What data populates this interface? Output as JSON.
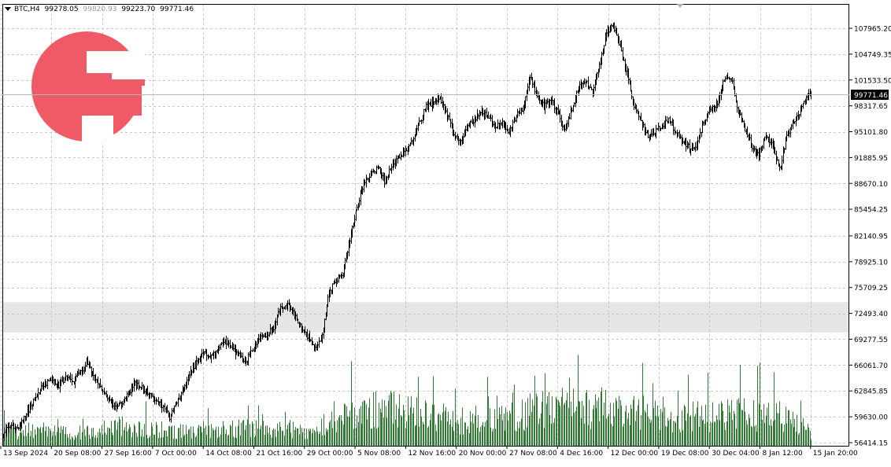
{
  "header": {
    "symbol_timeframe": "BTC,H4",
    "open": "99278.05",
    "high": "99820.93",
    "low": "99223.70",
    "close": "99771.46"
  },
  "logo": {
    "name": "logo-icon"
  },
  "colors": {
    "background": "#ffffff",
    "grid": "#c8c8c8",
    "bars": "#000000",
    "volume": "#2e7d32",
    "zone": "#e6e6e6",
    "logo": "#ef5a66",
    "price_tag_bg": "#000000",
    "price_tag_text": "#ffffff"
  },
  "chart_data": {
    "type": "ohlc",
    "title": "",
    "current_price": 99771.46,
    "current_price_label": "99771.46",
    "y_ticks": [
      {
        "value": 107965.2,
        "label": "107965.20"
      },
      {
        "value": 104749.35,
        "label": "104749.35"
      },
      {
        "value": 101533.5,
        "label": "101533.50"
      },
      {
        "value": 98317.65,
        "label": "98317.65"
      },
      {
        "value": 95101.8,
        "label": "95101.80"
      },
      {
        "value": 91885.95,
        "label": "91885.95"
      },
      {
        "value": 88670.1,
        "label": "88670.10"
      },
      {
        "value": 85454.25,
        "label": "85454.25"
      },
      {
        "value": 82140.95,
        "label": "82140.95"
      },
      {
        "value": 78925.1,
        "label": "78925.10"
      },
      {
        "value": 75709.25,
        "label": "75709.25"
      },
      {
        "value": 72493.4,
        "label": "72493.40"
      },
      {
        "value": 69277.55,
        "label": "69277.55"
      },
      {
        "value": 66061.7,
        "label": "66061.70"
      },
      {
        "value": 62845.85,
        "label": "62845.85"
      },
      {
        "value": 59630.0,
        "label": "59630.00"
      },
      {
        "value": 56414.15,
        "label": "56414.15"
      }
    ],
    "x_ticks": [
      "13 Sep 2024",
      "20 Sep 08:00",
      "27 Sep 16:00",
      "7 Oct 00:00",
      "14 Oct 08:00",
      "21 Oct 16:00",
      "29 Oct 00:00",
      "5 Nov 08:00",
      "12 Nov 16:00",
      "20 Nov 00:00",
      "27 Nov 08:00",
      "4 Dec 16:00",
      "12 Dec 00:00",
      "19 Dec 08:00",
      "30 Dec 04:00",
      "8 Jan 12:00",
      "15 Jan 20:00"
    ],
    "zone": {
      "low": 70100,
      "high": 73900
    },
    "grid": true,
    "price_path": [
      [
        0,
        57300
      ],
      [
        6,
        58800
      ],
      [
        12,
        58200
      ],
      [
        18,
        59600
      ],
      [
        24,
        61000
      ],
      [
        30,
        62700
      ],
      [
        36,
        63800
      ],
      [
        42,
        64300
      ],
      [
        48,
        63500
      ],
      [
        54,
        64600
      ],
      [
        60,
        63900
      ],
      [
        66,
        64900
      ],
      [
        72,
        66300
      ],
      [
        78,
        64800
      ],
      [
        84,
        63600
      ],
      [
        90,
        61800
      ],
      [
        96,
        60700
      ],
      [
        102,
        61200
      ],
      [
        108,
        62400
      ],
      [
        114,
        63900
      ],
      [
        120,
        63200
      ],
      [
        126,
        62600
      ],
      [
        132,
        61600
      ],
      [
        138,
        60900
      ],
      [
        144,
        59600
      ],
      [
        150,
        61300
      ],
      [
        156,
        63000
      ],
      [
        162,
        65300
      ],
      [
        168,
        66600
      ],
      [
        174,
        67600
      ],
      [
        180,
        67000
      ],
      [
        186,
        68100
      ],
      [
        192,
        69200
      ],
      [
        198,
        68000
      ],
      [
        204,
        67400
      ],
      [
        210,
        66500
      ],
      [
        216,
        68200
      ],
      [
        222,
        69300
      ],
      [
        228,
        69900
      ],
      [
        234,
        70600
      ],
      [
        240,
        73200
      ],
      [
        246,
        73700
      ],
      [
        252,
        72300
      ],
      [
        258,
        70600
      ],
      [
        264,
        69400
      ],
      [
        270,
        68200
      ],
      [
        276,
        69600
      ],
      [
        282,
        75100
      ],
      [
        288,
        76600
      ],
      [
        294,
        77400
      ],
      [
        300,
        81700
      ],
      [
        306,
        85800
      ],
      [
        312,
        88700
      ],
      [
        318,
        89800
      ],
      [
        324,
        90600
      ],
      [
        330,
        88900
      ],
      [
        336,
        90700
      ],
      [
        342,
        92000
      ],
      [
        348,
        92700
      ],
      [
        354,
        94200
      ],
      [
        360,
        96100
      ],
      [
        366,
        98200
      ],
      [
        372,
        98700
      ],
      [
        378,
        99300
      ],
      [
        384,
        97300
      ],
      [
        390,
        94500
      ],
      [
        396,
        93800
      ],
      [
        402,
        95800
      ],
      [
        408,
        96700
      ],
      [
        414,
        97500
      ],
      [
        420,
        97000
      ],
      [
        426,
        95600
      ],
      [
        432,
        96300
      ],
      [
        438,
        95000
      ],
      [
        444,
        97100
      ],
      [
        450,
        97900
      ],
      [
        456,
        102000
      ],
      [
        462,
        99400
      ],
      [
        468,
        98200
      ],
      [
        474,
        99000
      ],
      [
        480,
        97400
      ],
      [
        486,
        95300
      ],
      [
        492,
        98000
      ],
      [
        498,
        100800
      ],
      [
        504,
        101300
      ],
      [
        510,
        99900
      ],
      [
        516,
        103200
      ],
      [
        522,
        107400
      ],
      [
        528,
        108300
      ],
      [
        534,
        105600
      ],
      [
        540,
        102100
      ],
      [
        546,
        98500
      ],
      [
        552,
        96300
      ],
      [
        558,
        94700
      ],
      [
        564,
        95100
      ],
      [
        570,
        95900
      ],
      [
        576,
        96700
      ],
      [
        582,
        95000
      ],
      [
        588,
        94000
      ],
      [
        594,
        93100
      ],
      [
        600,
        93300
      ],
      [
        606,
        96400
      ],
      [
        612,
        97700
      ],
      [
        618,
        98700
      ],
      [
        624,
        101600
      ],
      [
        630,
        101800
      ],
      [
        636,
        97700
      ],
      [
        642,
        95500
      ],
      [
        648,
        93300
      ],
      [
        654,
        92300
      ],
      [
        660,
        94600
      ],
      [
        666,
        93400
      ],
      [
        672,
        90400
      ],
      [
        678,
        94700
      ],
      [
        684,
        96400
      ],
      [
        690,
        97600
      ],
      [
        696,
        99600
      ],
      [
        699,
        99771
      ]
    ],
    "volume_profile": [
      [
        0,
        6500
      ],
      [
        60,
        5200
      ],
      [
        100,
        8200
      ],
      [
        150,
        6000
      ],
      [
        200,
        7600
      ],
      [
        250,
        7000
      ],
      [
        270,
        4700
      ],
      [
        280,
        11500
      ],
      [
        300,
        13500
      ],
      [
        330,
        15500
      ],
      [
        360,
        13200
      ],
      [
        400,
        10500
      ],
      [
        440,
        12000
      ],
      [
        460,
        15200
      ],
      [
        500,
        16500
      ],
      [
        540,
        15000
      ],
      [
        580,
        11500
      ],
      [
        620,
        13000
      ],
      [
        650,
        13500
      ],
      [
        670,
        12500
      ],
      [
        690,
        8500
      ],
      [
        699,
        5000
      ]
    ],
    "volume_max": 24000,
    "bar_count": 700
  }
}
